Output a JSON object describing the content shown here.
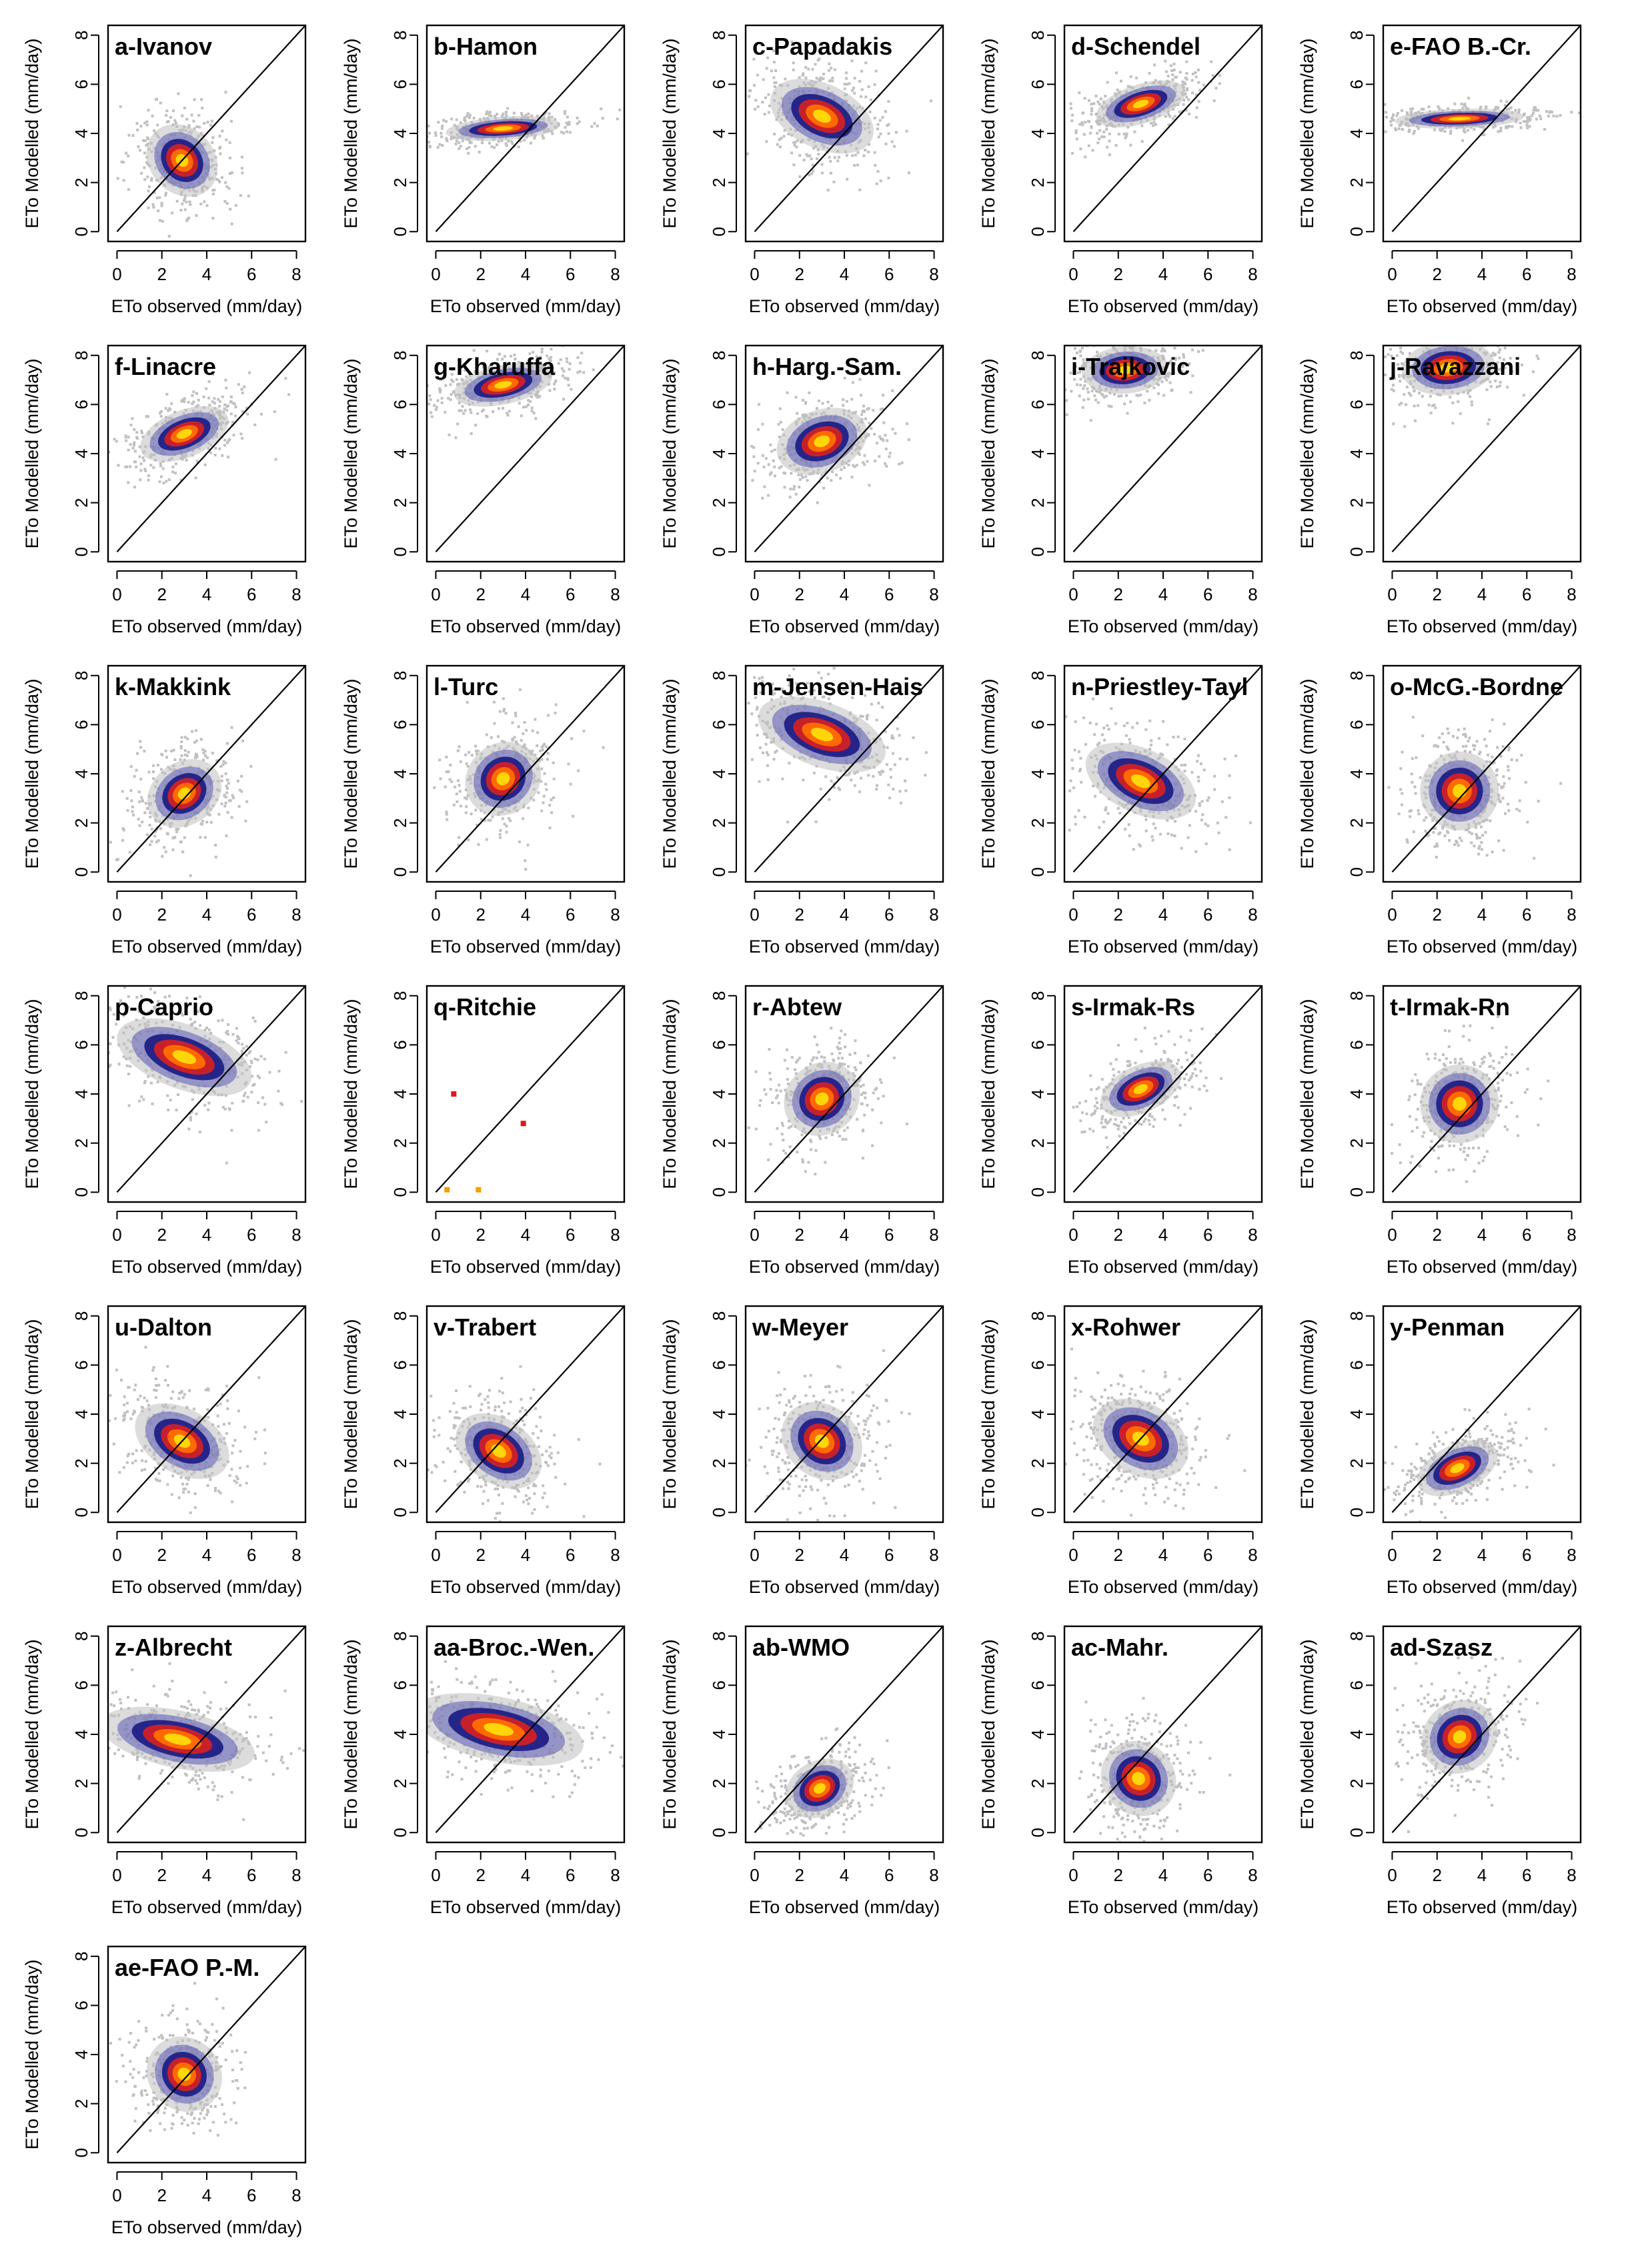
{
  "figure": {
    "panel_count": 31,
    "colors": {
      "background_points": "#c0c0c0",
      "density_low": "#1f1f86",
      "density_mid": "#5a5ab4",
      "density_high1": "#c8202a",
      "density_high2": "#ff6a00",
      "density_peak": "#ffd60a",
      "identity_line": "#000000"
    }
  },
  "chart_data": [
    {
      "type": "scatter",
      "title": "a-Ivanov",
      "xlabel": "ETo observed (mm/day)",
      "ylabel": "ETo Modelled (mm/day)",
      "xlim": [
        0,
        8
      ],
      "ylim": [
        0,
        8
      ],
      "xticks": [
        0,
        2,
        4,
        6,
        8
      ],
      "yticks": [
        0,
        2,
        4,
        6,
        8
      ],
      "reference_line": "1:1",
      "cluster": {
        "center": [
          2.9,
          2.9
        ],
        "sx": 0.9,
        "sy": 1.0,
        "rot_deg": 42
      }
    },
    {
      "type": "scatter",
      "title": "b-Hamon",
      "xlabel": "ETo observed (mm/day)",
      "ylabel": "ETo Modelled (mm/day)",
      "xlim": [
        0,
        8
      ],
      "ylim": [
        0,
        8
      ],
      "xticks": [
        0,
        2,
        4,
        6,
        8
      ],
      "yticks": [
        0,
        2,
        4,
        6,
        8
      ],
      "reference_line": "1:1",
      "cluster": {
        "center": [
          3.0,
          4.2
        ],
        "sx": 1.6,
        "sy": 0.3,
        "rot_deg": 4
      }
    },
    {
      "type": "scatter",
      "title": "c-Papadakis",
      "xlabel": "ETo observed (mm/day)",
      "ylabel": "ETo Modelled (mm/day)",
      "xlim": [
        0,
        8
      ],
      "ylim": [
        0,
        8
      ],
      "xticks": [
        0,
        2,
        4,
        6,
        8
      ],
      "yticks": [
        0,
        2,
        4,
        6,
        8
      ],
      "reference_line": "1:1",
      "cluster": {
        "center": [
          3.0,
          4.7
        ],
        "sx": 0.9,
        "sy": 1.4,
        "rot_deg": 65
      }
    },
    {
      "type": "scatter",
      "title": "d-Schendel",
      "xlabel": "ETo observed (mm/day)",
      "ylabel": "ETo Modelled (mm/day)",
      "xlim": [
        0,
        8
      ],
      "ylim": [
        0,
        8
      ],
      "xticks": [
        0,
        2,
        4,
        6,
        8
      ],
      "yticks": [
        0,
        2,
        4,
        6,
        8
      ],
      "reference_line": "1:1",
      "cluster": {
        "center": [
          3.0,
          5.2
        ],
        "sx": 1.3,
        "sy": 0.5,
        "rot_deg": 18
      }
    },
    {
      "type": "scatter",
      "title": "e-FAO B.-Cr.",
      "xlabel": "ETo observed (mm/day)",
      "ylabel": "ETo Modelled (mm/day)",
      "xlim": [
        0,
        8
      ],
      "ylim": [
        0,
        8
      ],
      "xticks": [
        0,
        2,
        4,
        6,
        8
      ],
      "yticks": [
        0,
        2,
        4,
        6,
        8
      ],
      "reference_line": "1:1",
      "cluster": {
        "center": [
          3.0,
          4.6
        ],
        "sx": 1.8,
        "sy": 0.25,
        "rot_deg": 2
      }
    },
    {
      "type": "scatter",
      "title": "f-Linacre",
      "xlabel": "ETo observed (mm/day)",
      "ylabel": "ETo Modelled (mm/day)",
      "xlim": [
        0,
        8
      ],
      "ylim": [
        0,
        8
      ],
      "xticks": [
        0,
        2,
        4,
        6,
        8
      ],
      "yticks": [
        0,
        2,
        4,
        6,
        8
      ],
      "reference_line": "1:1",
      "cluster": {
        "center": [
          3.0,
          4.8
        ],
        "sx": 1.3,
        "sy": 0.6,
        "rot_deg": 22
      }
    },
    {
      "type": "scatter",
      "title": "g-Kharuffa",
      "xlabel": "ETo observed (mm/day)",
      "ylabel": "ETo Modelled (mm/day)",
      "xlim": [
        0,
        8
      ],
      "ylim": [
        0,
        8
      ],
      "xticks": [
        0,
        2,
        4,
        6,
        8
      ],
      "yticks": [
        0,
        2,
        4,
        6,
        8
      ],
      "reference_line": "1:1",
      "cluster": {
        "center": [
          3.0,
          6.8
        ],
        "sx": 1.4,
        "sy": 0.5,
        "rot_deg": 12
      }
    },
    {
      "type": "scatter",
      "title": "h-Harg.-Sam.",
      "xlabel": "ETo observed (mm/day)",
      "ylabel": "ETo Modelled (mm/day)",
      "xlim": [
        0,
        8
      ],
      "ylim": [
        0,
        8
      ],
      "xticks": [
        0,
        2,
        4,
        6,
        8
      ],
      "yticks": [
        0,
        2,
        4,
        6,
        8
      ],
      "reference_line": "1:1",
      "cluster": {
        "center": [
          3.0,
          4.5
        ],
        "sx": 1.3,
        "sy": 0.8,
        "rot_deg": 20
      }
    },
    {
      "type": "scatter",
      "title": "i-Trajkovic",
      "xlabel": "ETo observed (mm/day)",
      "ylabel": "ETo Modelled (mm/day)",
      "xlim": [
        0,
        8
      ],
      "ylim": [
        0,
        8
      ],
      "xticks": [
        0,
        2,
        4,
        6,
        8
      ],
      "yticks": [
        0,
        2,
        4,
        6,
        8
      ],
      "reference_line": "1:1",
      "cluster": {
        "center": [
          2.3,
          7.4
        ],
        "sx": 1.2,
        "sy": 0.6,
        "rot_deg": 5
      }
    },
    {
      "type": "scatter",
      "title": "j-Ravazzani",
      "xlabel": "ETo observed (mm/day)",
      "ylabel": "ETo Modelled (mm/day)",
      "xlim": [
        0,
        8
      ],
      "ylim": [
        0,
        8
      ],
      "xticks": [
        0,
        2,
        4,
        6,
        8
      ],
      "yticks": [
        0,
        2,
        4,
        6,
        8
      ],
      "reference_line": "1:1",
      "cluster": {
        "center": [
          2.5,
          7.5
        ],
        "sx": 1.3,
        "sy": 0.7,
        "rot_deg": 5
      }
    },
    {
      "type": "scatter",
      "title": "k-Makkink",
      "xlabel": "ETo observed (mm/day)",
      "ylabel": "ETo Modelled (mm/day)",
      "xlim": [
        0,
        8
      ],
      "ylim": [
        0,
        8
      ],
      "xticks": [
        0,
        2,
        4,
        6,
        8
      ],
      "yticks": [
        0,
        2,
        4,
        6,
        8
      ],
      "reference_line": "1:1",
      "cluster": {
        "center": [
          3.0,
          3.2
        ],
        "sx": 1.1,
        "sy": 0.8,
        "rot_deg": 35
      }
    },
    {
      "type": "scatter",
      "title": "l-Turc",
      "xlabel": "ETo observed (mm/day)",
      "ylabel": "ETo Modelled (mm/day)",
      "xlim": [
        0,
        8
      ],
      "ylim": [
        0,
        8
      ],
      "xticks": [
        0,
        2,
        4,
        6,
        8
      ],
      "yticks": [
        0,
        2,
        4,
        6,
        8
      ],
      "reference_line": "1:1",
      "cluster": {
        "center": [
          3.0,
          3.8
        ],
        "sx": 1.1,
        "sy": 0.9,
        "rot_deg": 40
      }
    },
    {
      "type": "scatter",
      "title": "m-Jensen-Hais",
      "xlabel": "ETo observed (mm/day)",
      "ylabel": "ETo Modelled (mm/day)",
      "xlim": [
        0,
        8
      ],
      "ylim": [
        0,
        8
      ],
      "xticks": [
        0,
        2,
        4,
        6,
        8
      ],
      "yticks": [
        0,
        2,
        4,
        6,
        8
      ],
      "reference_line": "1:1",
      "cluster": {
        "center": [
          3.0,
          5.6
        ],
        "sx": 0.9,
        "sy": 1.7,
        "rot_deg": 70
      }
    },
    {
      "type": "scatter",
      "title": "n-Priestley-Tayl",
      "xlabel": "ETo observed (mm/day)",
      "ylabel": "ETo Modelled (mm/day)",
      "xlim": [
        0,
        8
      ],
      "ylim": [
        0,
        8
      ],
      "xticks": [
        0,
        2,
        4,
        6,
        8
      ],
      "yticks": [
        0,
        2,
        4,
        6,
        8
      ],
      "reference_line": "1:1",
      "cluster": {
        "center": [
          3.0,
          3.7
        ],
        "sx": 0.9,
        "sy": 1.5,
        "rot_deg": 65
      }
    },
    {
      "type": "scatter",
      "title": "o-McG.-Bordne",
      "xlabel": "ETo observed (mm/day)",
      "ylabel": "ETo Modelled (mm/day)",
      "xlim": [
        0,
        8
      ],
      "ylim": [
        0,
        8
      ],
      "xticks": [
        0,
        2,
        4,
        6,
        8
      ],
      "yticks": [
        0,
        2,
        4,
        6,
        8
      ],
      "reference_line": "1:1",
      "cluster": {
        "center": [
          3.0,
          3.3
        ],
        "sx": 1.1,
        "sy": 1.0,
        "rot_deg": 42
      }
    },
    {
      "type": "scatter",
      "title": "p-Caprio",
      "xlabel": "ETo observed (mm/day)",
      "ylabel": "ETo Modelled (mm/day)",
      "xlim": [
        0,
        8
      ],
      "ylim": [
        0,
        8
      ],
      "xticks": [
        0,
        2,
        4,
        6,
        8
      ],
      "yticks": [
        0,
        2,
        4,
        6,
        8
      ],
      "reference_line": "1:1",
      "cluster": {
        "center": [
          3.0,
          5.5
        ],
        "sx": 0.9,
        "sy": 1.8,
        "rot_deg": 70
      }
    },
    {
      "type": "scatter",
      "title": "q-Ritchie",
      "xlabel": "ETo observed (mm/day)",
      "ylabel": "ETo Modelled (mm/day)",
      "xlim": [
        0,
        8
      ],
      "ylim": [
        0,
        8
      ],
      "xticks": [
        0,
        2,
        4,
        6,
        8
      ],
      "yticks": [
        0,
        2,
        4,
        6,
        8
      ],
      "reference_line": "1:1",
      "points": [
        [
          0.8,
          4.0
        ],
        [
          3.9,
          2.8
        ],
        [
          0.5,
          0.1
        ],
        [
          1.9,
          0.1
        ]
      ]
    },
    {
      "type": "scatter",
      "title": "r-Abtew",
      "xlabel": "ETo observed (mm/day)",
      "ylabel": "ETo Modelled (mm/day)",
      "xlim": [
        0,
        8
      ],
      "ylim": [
        0,
        8
      ],
      "xticks": [
        0,
        2,
        4,
        6,
        8
      ],
      "yticks": [
        0,
        2,
        4,
        6,
        8
      ],
      "reference_line": "1:1",
      "cluster": {
        "center": [
          3.0,
          3.8
        ],
        "sx": 1.1,
        "sy": 0.9,
        "rot_deg": 38
      }
    },
    {
      "type": "scatter",
      "title": "s-Irmak-Rs",
      "xlabel": "ETo observed (mm/day)",
      "ylabel": "ETo Modelled (mm/day)",
      "xlim": [
        0,
        8
      ],
      "ylim": [
        0,
        8
      ],
      "xticks": [
        0,
        2,
        4,
        6,
        8
      ],
      "yticks": [
        0,
        2,
        4,
        6,
        8
      ],
      "reference_line": "1:1",
      "cluster": {
        "center": [
          3.0,
          4.2
        ],
        "sx": 1.2,
        "sy": 0.6,
        "rot_deg": 25
      }
    },
    {
      "type": "scatter",
      "title": "t-Irmak-Rn",
      "xlabel": "ETo observed (mm/day)",
      "ylabel": "ETo Modelled (mm/day)",
      "xlim": [
        0,
        8
      ],
      "ylim": [
        0,
        8
      ],
      "xticks": [
        0,
        2,
        4,
        6,
        8
      ],
      "yticks": [
        0,
        2,
        4,
        6,
        8
      ],
      "reference_line": "1:1",
      "cluster": {
        "center": [
          3.0,
          3.6
        ],
        "sx": 1.1,
        "sy": 1.0,
        "rot_deg": 45
      }
    },
    {
      "type": "scatter",
      "title": "u-Dalton",
      "xlabel": "ETo observed (mm/day)",
      "ylabel": "ETo Modelled (mm/day)",
      "xlim": [
        0,
        8
      ],
      "ylim": [
        0,
        8
      ],
      "xticks": [
        0,
        2,
        4,
        6,
        8
      ],
      "yticks": [
        0,
        2,
        4,
        6,
        8
      ],
      "reference_line": "1:1",
      "cluster": {
        "center": [
          2.9,
          2.9
        ],
        "sx": 0.9,
        "sy": 1.3,
        "rot_deg": 60
      }
    },
    {
      "type": "scatter",
      "title": "v-Trabert",
      "xlabel": "ETo observed (mm/day)",
      "ylabel": "ETo Modelled (mm/day)",
      "xlim": [
        0,
        8
      ],
      "ylim": [
        0,
        8
      ],
      "xticks": [
        0,
        2,
        4,
        6,
        8
      ],
      "yticks": [
        0,
        2,
        4,
        6,
        8
      ],
      "reference_line": "1:1",
      "cluster": {
        "center": [
          2.8,
          2.5
        ],
        "sx": 0.9,
        "sy": 1.2,
        "rot_deg": 55
      }
    },
    {
      "type": "scatter",
      "title": "w-Meyer",
      "xlabel": "ETo observed (mm/day)",
      "ylabel": "ETo Modelled (mm/day)",
      "xlim": [
        0,
        8
      ],
      "ylim": [
        0,
        8
      ],
      "xticks": [
        0,
        2,
        4,
        6,
        8
      ],
      "yticks": [
        0,
        2,
        4,
        6,
        8
      ],
      "reference_line": "1:1",
      "cluster": {
        "center": [
          3.0,
          2.9
        ],
        "sx": 1.0,
        "sy": 1.1,
        "rot_deg": 50
      }
    },
    {
      "type": "scatter",
      "title": "x-Rohwer",
      "xlabel": "ETo observed (mm/day)",
      "ylabel": "ETo Modelled (mm/day)",
      "xlim": [
        0,
        8
      ],
      "ylim": [
        0,
        8
      ],
      "xticks": [
        0,
        2,
        4,
        6,
        8
      ],
      "yticks": [
        0,
        2,
        4,
        6,
        8
      ],
      "reference_line": "1:1",
      "cluster": {
        "center": [
          3.0,
          3.0
        ],
        "sx": 1.0,
        "sy": 1.3,
        "rot_deg": 60
      }
    },
    {
      "type": "scatter",
      "title": "y-Penman",
      "xlabel": "ETo observed (mm/day)",
      "ylabel": "ETo Modelled (mm/day)",
      "xlim": [
        0,
        8
      ],
      "ylim": [
        0,
        8
      ],
      "xticks": [
        0,
        2,
        4,
        6,
        8
      ],
      "yticks": [
        0,
        2,
        4,
        6,
        8
      ],
      "reference_line": "1:1",
      "cluster": {
        "center": [
          2.9,
          1.8
        ],
        "sx": 1.2,
        "sy": 0.6,
        "rot_deg": 25
      }
    },
    {
      "type": "scatter",
      "title": "z-Albrecht",
      "xlabel": "ETo observed (mm/day)",
      "ylabel": "ETo Modelled (mm/day)",
      "xlim": [
        0,
        8
      ],
      "ylim": [
        0,
        8
      ],
      "xticks": [
        0,
        2,
        4,
        6,
        8
      ],
      "yticks": [
        0,
        2,
        4,
        6,
        8
      ],
      "reference_line": "1:1",
      "cluster": {
        "center": [
          2.7,
          3.8
        ],
        "sx": 0.8,
        "sy": 2.0,
        "rot_deg": 78
      }
    },
    {
      "type": "scatter",
      "title": "aa-Broc.-Wen.",
      "xlabel": "ETo observed (mm/day)",
      "ylabel": "ETo Modelled (mm/day)",
      "xlim": [
        0,
        8
      ],
      "ylim": [
        0,
        8
      ],
      "xticks": [
        0,
        2,
        4,
        6,
        8
      ],
      "yticks": [
        0,
        2,
        4,
        6,
        8
      ],
      "reference_line": "1:1",
      "cluster": {
        "center": [
          2.8,
          4.2
        ],
        "sx": 0.9,
        "sy": 2.2,
        "rot_deg": 78
      }
    },
    {
      "type": "scatter",
      "title": "ab-WMO",
      "xlabel": "ETo observed (mm/day)",
      "ylabel": "ETo Modelled (mm/day)",
      "xlim": [
        0,
        8
      ],
      "ylim": [
        0,
        8
      ],
      "xticks": [
        0,
        2,
        4,
        6,
        8
      ],
      "yticks": [
        0,
        2,
        4,
        6,
        8
      ],
      "reference_line": "1:1",
      "cluster": {
        "center": [
          2.9,
          1.8
        ],
        "sx": 1.0,
        "sy": 0.7,
        "rot_deg": 30
      }
    },
    {
      "type": "scatter",
      "title": "ac-Mahr.",
      "xlabel": "ETo observed (mm/day)",
      "ylabel": "ETo Modelled (mm/day)",
      "xlim": [
        0,
        8
      ],
      "ylim": [
        0,
        8
      ],
      "xticks": [
        0,
        2,
        4,
        6,
        8
      ],
      "yticks": [
        0,
        2,
        4,
        6,
        8
      ],
      "reference_line": "1:1",
      "cluster": {
        "center": [
          2.9,
          2.2
        ],
        "sx": 1.0,
        "sy": 1.0,
        "rot_deg": 45
      }
    },
    {
      "type": "scatter",
      "title": "ad-Szasz",
      "xlabel": "ETo observed (mm/day)",
      "ylabel": "ETo Modelled (mm/day)",
      "xlim": [
        0,
        8
      ],
      "ylim": [
        0,
        8
      ],
      "xticks": [
        0,
        2,
        4,
        6,
        8
      ],
      "yticks": [
        0,
        2,
        4,
        6,
        8
      ],
      "reference_line": "1:1",
      "cluster": {
        "center": [
          3.0,
          3.9
        ],
        "sx": 1.1,
        "sy": 0.9,
        "rot_deg": 38
      }
    },
    {
      "type": "scatter",
      "title": "ae-FAO P.-M.",
      "xlabel": "ETo observed (mm/day)",
      "ylabel": "ETo Modelled (mm/day)",
      "xlim": [
        0,
        8
      ],
      "ylim": [
        0,
        8
      ],
      "xticks": [
        0,
        2,
        4,
        6,
        8
      ],
      "yticks": [
        0,
        2,
        4,
        6,
        8
      ],
      "reference_line": "1:1",
      "cluster": {
        "center": [
          3.0,
          3.2
        ],
        "sx": 1.0,
        "sy": 1.0,
        "rot_deg": 45
      }
    }
  ]
}
